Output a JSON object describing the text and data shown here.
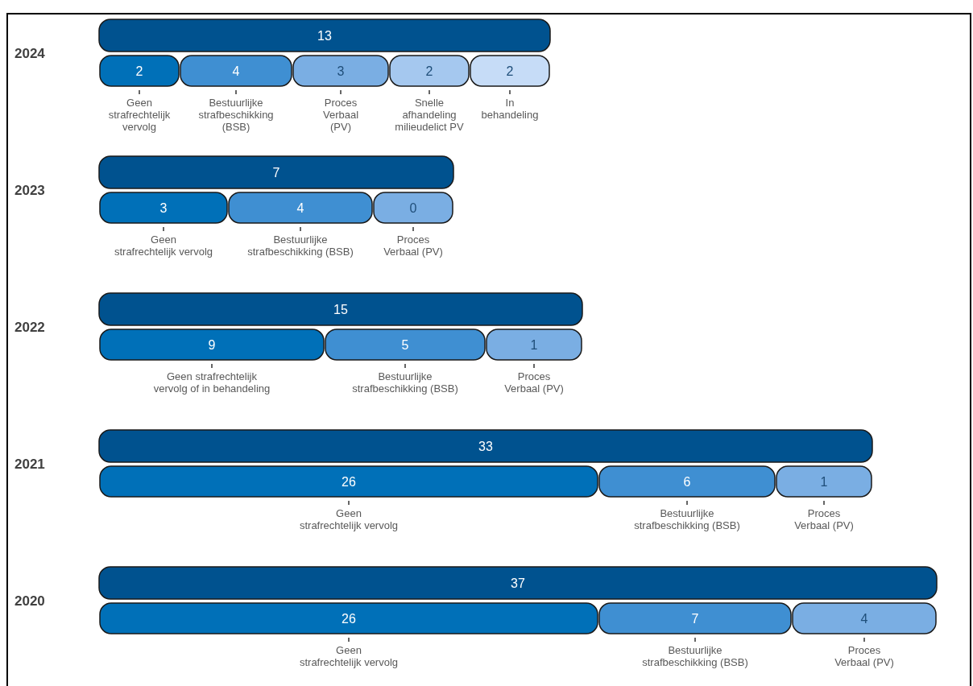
{
  "chart_data": [
    {
      "type": "other",
      "title": "2024",
      "color": "#00528f",
      "totals": [
        "13"
      ],
      "categories": [
        "Geen\nstrafrechtelijk\nvervolg",
        "Bestuurlijke\nstrafbeschikking\n(BSB)",
        "Proces\nVerbaal\n(PV)",
        "Snelle\nafhandeling\nmilieudelict PV",
        "In\nbehandeling"
      ],
      "values": [
        2,
        4,
        3,
        2,
        2
      ],
      "colors": [
        "#0070b8",
        "#3f8fd2",
        "#7aaee3",
        "#a5c8ef",
        "#c6dcf7"
      ],
      "data_labels": true
    },
    {
      "type": "other",
      "title": "2023",
      "color": "#00528f",
      "totals": [
        "7"
      ],
      "categories": [
        "Geen\nstrafrechtelijk vervolg",
        "Bestuurlijke\nstrafbeschikking (BSB)",
        "Proces\nVerbaal (PV)"
      ],
      "values": [
        3,
        4,
        0
      ],
      "colors": [
        "#0070b8",
        "#3f8fd2",
        "#7aaee3"
      ],
      "data_labels": true
    },
    {
      "type": "other",
      "title": "2022",
      "color": "#00528f",
      "totals": [
        "15"
      ],
      "categories": [
        "Geen strafrechtelijk\nvervolg of in behandeling",
        "Bestuurlijke\nstrafbeschikking (BSB)",
        "Proces\nVerbaal (PV)"
      ],
      "values": [
        9,
        5,
        1
      ],
      "colors": [
        "#0070b8",
        "#3f8fd2",
        "#7aaee3"
      ],
      "data_labels": true
    },
    {
      "type": "other",
      "title": "2021",
      "color": "#00528f",
      "totals": [
        "33"
      ],
      "categories": [
        "Geen\nstrafrechtelijk vervolg",
        "Bestuurlijke\nstrafbeschikking (BSB)",
        "Proces\nVerbaal (PV)"
      ],
      "values": [
        26,
        6,
        1
      ],
      "colors": [
        "#0070b8",
        "#3f8fd2",
        "#7aaee3"
      ],
      "data_labels": true
    },
    {
      "type": "other",
      "title": "2020",
      "color": "#00528f",
      "totals": [
        "37"
      ],
      "categories": [
        "Geen\nstrafrechtelijk vervolg",
        "Bestuurlijke\nstrafbeschikking (BSB)",
        "Proces\nVerbaal (PV)"
      ],
      "values": [
        26,
        7,
        4
      ],
      "colors": [
        "#0070b8",
        "#3f8fd2",
        "#7aaee3"
      ],
      "data_labels": true
    }
  ]
}
